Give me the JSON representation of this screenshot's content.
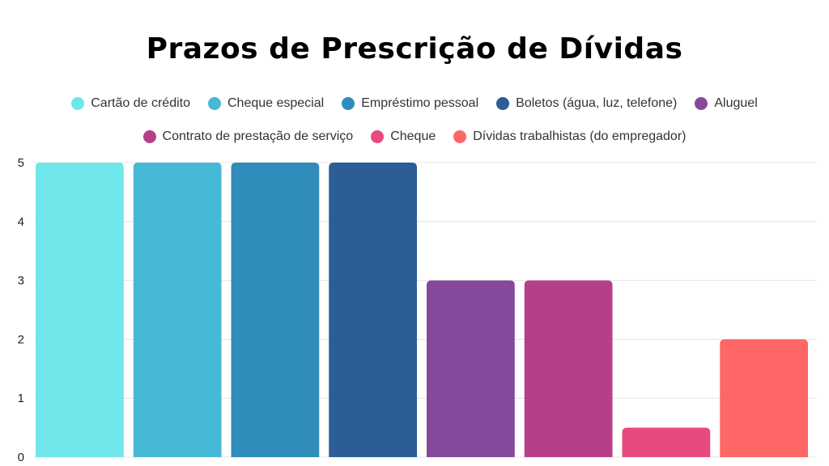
{
  "chart_data": {
    "type": "bar",
    "title": "Prazos de Prescrição de Dívidas",
    "xlabel": "",
    "ylabel": "",
    "ylim": [
      0,
      5
    ],
    "yticks": [
      "0",
      "1",
      "2",
      "3",
      "4",
      "5"
    ],
    "grid": true,
    "legend_position": "top",
    "categories": [
      "Cartão de crédito",
      "Cheque especial",
      "Empréstimo pessoal",
      "Boletos (água, luz, telefone)",
      "Aluguel",
      "Contrato de prestação de serviço",
      "Cheque",
      "Dívidas trabalhistas (do empregador)"
    ],
    "values": [
      5,
      5,
      5,
      5,
      3,
      3,
      0.5,
      2
    ],
    "colors": [
      "#6ee6ea",
      "#45b9d5",
      "#2f8cbb",
      "#2c5d96",
      "#86489a",
      "#b73f8a",
      "#e84a7d",
      "#ff6666"
    ]
  }
}
